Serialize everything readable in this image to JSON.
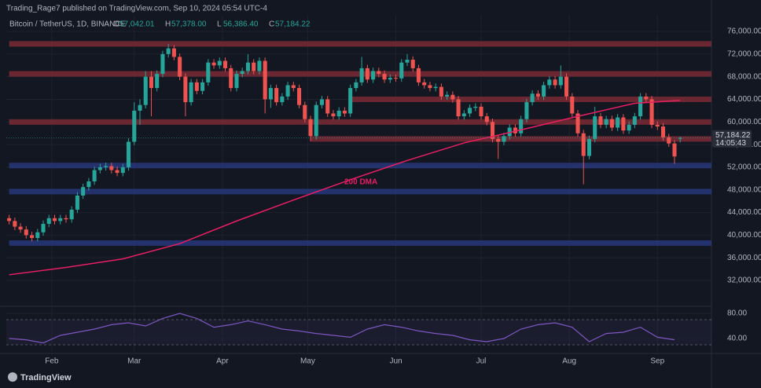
{
  "header": {
    "published": "Trading_Rage7 published on TradingView.com, Sep 10, 2024 05:54 UTC-4",
    "brand": "TradingView"
  },
  "chart_data": {
    "type": "candlestick",
    "symbol": "Bitcoin / TetherUS, 1D, BINANCE",
    "ohlc_legend": [
      {
        "key": "O",
        "value": 57042.01,
        "label": "57,042.01"
      },
      {
        "key": "H",
        "value": 57378,
        "label": "57,378.00"
      },
      {
        "key": "L",
        "value": 56386.4,
        "label": "56,386.40"
      },
      {
        "key": "C",
        "value": 57184.22,
        "label": "57,184.22"
      }
    ],
    "up_color": "#26a69a",
    "down_color": "#ef5350",
    "open": [
      43000,
      42500,
      41500,
      41000,
      40000,
      39500,
      40500,
      42000,
      43000,
      42500,
      43000,
      42800,
      44500,
      47000,
      48500,
      49500,
      51500,
      52000,
      52200,
      51500,
      51000,
      52000,
      56500,
      62000,
      63000,
      68000,
      66000,
      68500,
      72000,
      73000,
      71500,
      68000,
      63500,
      67000,
      65500,
      67000,
      70500,
      70000,
      70800,
      69500,
      66000,
      68500,
      69000,
      70500,
      69000,
      70800,
      64000,
      66000,
      63500,
      64500,
      66500,
      66000,
      63000,
      60500,
      57500,
      63000,
      64000,
      61500,
      61000,
      62000,
      61500,
      66000,
      67000,
      69500,
      67500,
      69000,
      68500,
      67500,
      67800,
      67700,
      70500,
      71000,
      69500,
      67000,
      66500,
      66000,
      66200,
      64500,
      64800,
      64000,
      61000,
      61500,
      62500,
      62700,
      61000,
      60000,
      57000,
      56500,
      57500,
      59000,
      58000,
      60500,
      63500,
      65000,
      64500,
      66500,
      67500,
      66500,
      68000,
      64500,
      61500,
      58000,
      54000,
      57000,
      61000,
      59500,
      60500,
      59000,
      60800,
      58500,
      59500,
      61000,
      64500,
      64000,
      59500,
      59200,
      57300,
      56200,
      57042.01
    ],
    "high": [
      43600,
      43100,
      42100,
      41600,
      40600,
      41100,
      42600,
      43600,
      43600,
      43600,
      43600,
      45100,
      47600,
      49100,
      50100,
      52100,
      52600,
      52800,
      52800,
      52100,
      52600,
      57100,
      63500,
      64000,
      69000,
      69000,
      69100,
      72600,
      73800,
      73600,
      72100,
      68600,
      67600,
      67600,
      67600,
      71100,
      71100,
      71400,
      71400,
      70100,
      69100,
      69600,
      72000,
      71100,
      71400,
      71400,
      66600,
      66600,
      65100,
      67100,
      67100,
      66600,
      63600,
      61100,
      63600,
      64600,
      64600,
      62100,
      62600,
      62600,
      66600,
      67600,
      71500,
      70100,
      69600,
      69600,
      69100,
      68400,
      68400,
      71100,
      72000,
      71600,
      70100,
      67600,
      67100,
      66800,
      66800,
      65400,
      65400,
      64600,
      62100,
      63100,
      63300,
      63300,
      61600,
      60600,
      57600,
      58100,
      59600,
      59600,
      61100,
      64100,
      65600,
      65600,
      67100,
      68100,
      68100,
      70000,
      68600,
      65100,
      62100,
      58600,
      57600,
      62700,
      61600,
      61100,
      61100,
      61400,
      61400,
      60100,
      61600,
      65100,
      65100,
      64600,
      60100,
      59800,
      57900,
      56800,
      57378
    ],
    "low": [
      41900,
      40900,
      40400,
      39400,
      38900,
      38900,
      39900,
      41400,
      41900,
      41900,
      42200,
      42200,
      43900,
      46400,
      47900,
      48900,
      50900,
      51400,
      50900,
      50400,
      50400,
      51400,
      55900,
      59500,
      62400,
      61000,
      65400,
      67900,
      71400,
      70900,
      67400,
      61000,
      62900,
      64900,
      64900,
      66400,
      69400,
      69400,
      68900,
      65400,
      65400,
      67900,
      68400,
      68400,
      68400,
      61500,
      62500,
      62900,
      62900,
      63900,
      65400,
      62400,
      59900,
      56600,
      56900,
      62400,
      60900,
      60400,
      60400,
      60900,
      60900,
      65400,
      66400,
      66900,
      66900,
      67900,
      66900,
      66900,
      67100,
      67100,
      69900,
      68900,
      66400,
      65900,
      65400,
      65400,
      63900,
      63900,
      63400,
      60400,
      60400,
      60900,
      61900,
      60400,
      59400,
      56400,
      53500,
      55900,
      56900,
      57400,
      57400,
      59900,
      62900,
      63900,
      63900,
      65900,
      65900,
      65900,
      63900,
      60900,
      57400,
      49000,
      53400,
      56400,
      58900,
      58900,
      58400,
      58400,
      57900,
      57900,
      58900,
      60400,
      63400,
      58900,
      58600,
      56700,
      55600,
      52600,
      56386.4
    ],
    "close": [
      42500,
      41500,
      41000,
      40000,
      39500,
      40500,
      42000,
      43000,
      42500,
      43000,
      42800,
      44500,
      47000,
      48500,
      49500,
      51500,
      52000,
      52200,
      51500,
      51000,
      52000,
      56500,
      62000,
      63000,
      68000,
      66000,
      68500,
      72000,
      73000,
      71500,
      68000,
      63500,
      67000,
      65500,
      67000,
      70500,
      70000,
      70800,
      69500,
      66000,
      68500,
      69000,
      70500,
      69000,
      70800,
      64000,
      66000,
      63500,
      64500,
      66500,
      66000,
      63000,
      60500,
      57500,
      63000,
      64000,
      61500,
      61000,
      62000,
      61500,
      66000,
      67000,
      69500,
      67500,
      69000,
      68500,
      67500,
      67800,
      67700,
      70500,
      71000,
      69500,
      67000,
      66500,
      66000,
      66200,
      64500,
      64800,
      64000,
      61000,
      61500,
      62500,
      62700,
      61000,
      60000,
      57000,
      56500,
      57500,
      59000,
      58000,
      60500,
      63500,
      65000,
      64500,
      66500,
      67500,
      66500,
      68000,
      64500,
      61500,
      58000,
      54000,
      57000,
      61000,
      59500,
      60500,
      59000,
      60800,
      58500,
      59500,
      61000,
      64500,
      64000,
      59500,
      59200,
      57300,
      56200,
      53900,
      57184.22
    ],
    "xlim": [
      -0.5,
      123.5
    ],
    "xticks": [
      {
        "value": 7.5,
        "label": "Feb"
      },
      {
        "value": 22,
        "label": "Mar"
      },
      {
        "value": 37.5,
        "label": "Apr"
      },
      {
        "value": 52.5,
        "label": "May"
      },
      {
        "value": 68,
        "label": "Jun"
      },
      {
        "value": 83,
        "label": "Jul"
      },
      {
        "value": 98.5,
        "label": "Aug"
      },
      {
        "value": 114,
        "label": "Sep"
      }
    ],
    "ylim": [
      27700,
      78780
    ],
    "yticks": [
      {
        "value": 32000,
        "label": "32,000.00"
      },
      {
        "value": 36000,
        "label": "36,000.00"
      },
      {
        "value": 40000,
        "label": "40,000.00"
      },
      {
        "value": 44000,
        "label": "44,000.00"
      },
      {
        "value": 48000,
        "label": "48,000.00"
      },
      {
        "value": 52000,
        "label": "52,000.00"
      },
      {
        "value": 56000,
        "label": "56,000.00"
      },
      {
        "value": 60000,
        "label": "60,000.00"
      },
      {
        "value": 64000,
        "label": "64,000.00"
      },
      {
        "value": 68000,
        "label": "68,000.00"
      },
      {
        "value": 72000,
        "label": "72,000.00"
      },
      {
        "value": 76000,
        "label": "76,000.00"
      }
    ],
    "grid": true,
    "levels": [
      {
        "value": 73800,
        "start": 0,
        "color": "#7a2a34"
      },
      {
        "value": 68500,
        "start": 0,
        "color": "#7a2a34"
      },
      {
        "value": 64000,
        "start": 60,
        "color": "#7a2a34"
      },
      {
        "value": 60000,
        "start": 0,
        "color": "#7a2a34"
      },
      {
        "value": 57000,
        "start": 53,
        "color": "#7a2a34"
      },
      {
        "value": 52300,
        "start": 0,
        "color": "#27377a"
      },
      {
        "value": 47700,
        "start": 0,
        "color": "#27377a"
      },
      {
        "value": 38600,
        "start": 0,
        "color": "#27377a"
      }
    ],
    "dma": {
      "name": "200 DMA",
      "color": "#e91e63",
      "x": [
        0,
        10,
        20,
        30,
        40,
        50,
        60,
        70,
        80,
        90,
        100,
        110,
        118
      ],
      "values": [
        33000,
        34300,
        35800,
        38500,
        42500,
        46200,
        49800,
        53200,
        56300,
        58600,
        61000,
        63300,
        63800
      ]
    },
    "price_tag": {
      "value": 57184.22,
      "label": "57,184.22",
      "timer": "14:05:43"
    },
    "rsi": {
      "color": "#7e57c2",
      "x": [
        0,
        3,
        6,
        9,
        12,
        15,
        18,
        21,
        24,
        27,
        30,
        33,
        36,
        39,
        42,
        45,
        48,
        51,
        54,
        57,
        60,
        63,
        66,
        69,
        72,
        75,
        78,
        81,
        84,
        87,
        90,
        93,
        96,
        99,
        102,
        105,
        108,
        111,
        114,
        117
      ],
      "values": [
        40,
        38,
        33,
        45,
        50,
        55,
        62,
        65,
        60,
        72,
        80,
        72,
        58,
        62,
        68,
        62,
        55,
        52,
        48,
        45,
        42,
        55,
        62,
        58,
        52,
        48,
        45,
        38,
        35,
        40,
        55,
        62,
        65,
        58,
        35,
        48,
        50,
        58,
        42,
        38
      ],
      "ylim": [
        20,
        87.5
      ],
      "yticks": [
        {
          "value": 40,
          "label": "40.00"
        },
        {
          "value": 80,
          "label": "80.00"
        }
      ],
      "band": [
        30,
        70
      ]
    }
  }
}
